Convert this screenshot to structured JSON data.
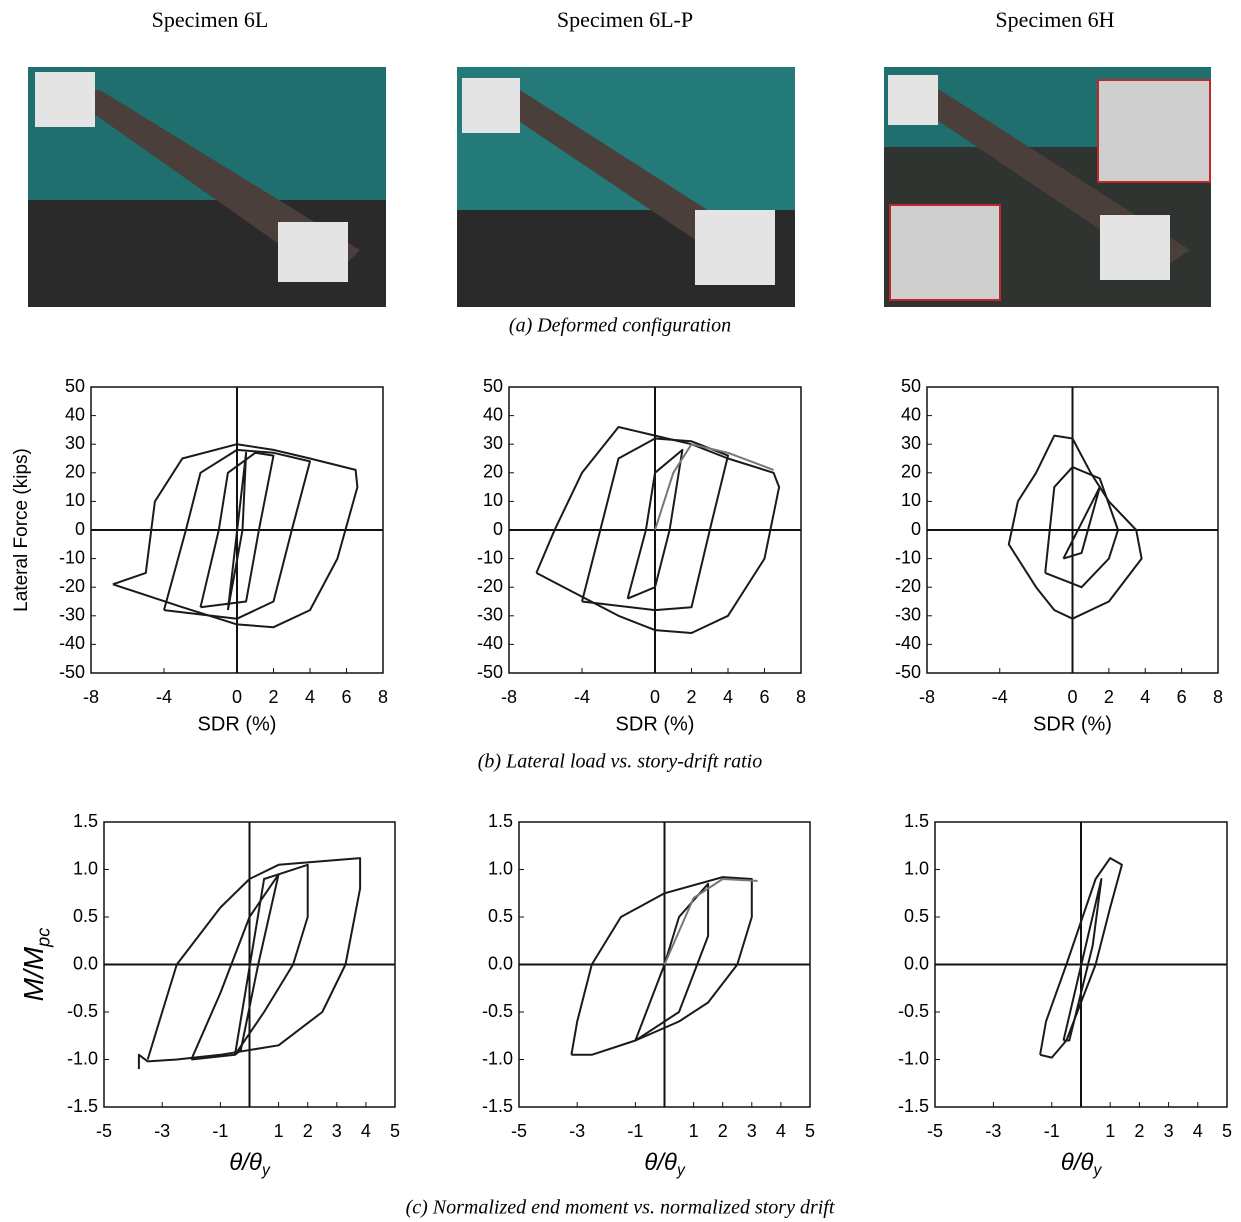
{
  "specimens": [
    "Specimen 6L",
    "Specimen 6L-P",
    "Specimen 6H"
  ],
  "captions": [
    "(a)  Deformed configuration",
    "(b)  Lateral load vs. story-drift ratio",
    "(c)  Normalized end moment vs. normalized story drift"
  ],
  "chart_data": [
    {
      "type": "line",
      "ylabel": "Lateral Force (kips)",
      "xlabel": "SDR (%)",
      "xlim": [
        -8,
        8
      ],
      "ylim": [
        -50,
        50
      ],
      "xticks": [
        -8,
        -4,
        0,
        2,
        4,
        6,
        8
      ],
      "yticks": [
        -50,
        -40,
        -30,
        -20,
        -10,
        0,
        10,
        20,
        30,
        40,
        50
      ],
      "zero_lines": true,
      "series": [
        {
          "color": "#1a1a1a",
          "x": [
            -6.8,
            -5,
            -4.5,
            -3,
            0,
            2,
            4,
            6.5,
            6.6,
            5.5,
            4,
            2,
            0,
            -3,
            -6.8
          ],
          "values": [
            -19,
            -15,
            10,
            25,
            30,
            28,
            25,
            21,
            15,
            -10,
            -28,
            -34,
            -33,
            -27,
            -19
          ]
        },
        {
          "color": "#1a1a1a",
          "x": [
            -4,
            -2.8,
            -2,
            0,
            2,
            4,
            3,
            2,
            0,
            -4
          ],
          "values": [
            -28,
            0,
            20,
            28,
            27,
            24,
            0,
            -25,
            -31,
            -28
          ]
        },
        {
          "color": "#1a1a1a",
          "x": [
            -2,
            -1,
            -0.5,
            1,
            2,
            1.2,
            0.5,
            -2
          ],
          "values": [
            -27,
            0,
            20,
            27,
            26,
            0,
            -25,
            -27
          ]
        },
        {
          "color": "#1a1a1a",
          "x": [
            -0.5,
            0.5,
            0.3,
            -0.5
          ],
          "values": [
            -28,
            27,
            0,
            -28
          ]
        }
      ]
    },
    {
      "type": "line",
      "xlabel": "SDR (%)",
      "xlim": [
        -8,
        8
      ],
      "ylim": [
        -50,
        50
      ],
      "xticks": [
        -8,
        -4,
        0,
        2,
        4,
        6,
        8
      ],
      "yticks": [
        -50,
        -40,
        -30,
        -20,
        -10,
        0,
        10,
        20,
        30,
        40,
        50
      ],
      "zero_lines": true,
      "series": [
        {
          "color": "#1a1a1a",
          "x": [
            -6.5,
            -5.5,
            -4,
            -2,
            0,
            2,
            4,
            6.5,
            6.8,
            6,
            4,
            2,
            0,
            -2,
            -5,
            -6.5
          ],
          "values": [
            -15,
            0,
            20,
            36,
            33,
            30,
            25,
            20,
            15,
            -10,
            -30,
            -36,
            -35,
            -30,
            -20,
            -15
          ]
        },
        {
          "color": "#1a1a1a",
          "x": [
            -4,
            -3,
            -2,
            0,
            2,
            4,
            3,
            2,
            0,
            -4
          ],
          "values": [
            -25,
            0,
            25,
            32,
            31,
            26,
            0,
            -27,
            -28,
            -25
          ]
        },
        {
          "color": "#1a1a1a",
          "x": [
            -1.5,
            -0.5,
            0,
            1.5,
            0.8,
            0,
            -1.5
          ],
          "values": [
            -24,
            0,
            20,
            28,
            0,
            -20,
            -24
          ]
        },
        {
          "color": "#777777",
          "x": [
            0,
            1,
            2,
            4,
            6.5
          ],
          "values": [
            0,
            20,
            30,
            27,
            21
          ]
        }
      ]
    },
    {
      "type": "line",
      "xlabel": "SDR (%)",
      "xlim": [
        -8,
        8
      ],
      "ylim": [
        -50,
        50
      ],
      "xticks": [
        -8,
        -4,
        0,
        2,
        4,
        6,
        8
      ],
      "yticks": [
        -50,
        -40,
        -30,
        -20,
        -10,
        0,
        10,
        20,
        30,
        40,
        50
      ],
      "zero_lines": true,
      "series": [
        {
          "color": "#1a1a1a",
          "x": [
            -3,
            -2,
            -1,
            0,
            1,
            2,
            3.5,
            3.8,
            2,
            0,
            -1,
            -2,
            -3.5,
            -3
          ],
          "values": [
            10,
            20,
            33,
            32,
            20,
            10,
            0,
            -10,
            -25,
            -31,
            -28,
            -20,
            -5,
            10
          ]
        },
        {
          "color": "#1a1a1a",
          "x": [
            -1.5,
            -1,
            0,
            1.5,
            2.5,
            2,
            0.5,
            -1.5
          ],
          "values": [
            -15,
            15,
            22,
            18,
            0,
            -10,
            -20,
            -15
          ]
        },
        {
          "color": "#1a1a1a",
          "x": [
            -0.5,
            1.5,
            0.5,
            -0.5
          ],
          "values": [
            -10,
            15,
            -8,
            -10
          ]
        }
      ]
    },
    {
      "type": "line",
      "ylabel": {
        "text": "M/M",
        "sub": "pc"
      },
      "xlabel": {
        "text": "θ/θ",
        "sub": "y"
      },
      "xlim": [
        -5,
        5
      ],
      "ylim": [
        -1.5,
        1.5
      ],
      "xticks": [
        -5,
        -3,
        -1,
        1,
        2,
        3,
        4,
        5
      ],
      "yticks": [
        -1.5,
        {
          "value": -1,
          "label": "-1.0"
        },
        -0.5,
        {
          "value": 0,
          "label": "0.0"
        },
        0.5,
        {
          "value": 1,
          "label": "1.0"
        },
        1.5
      ],
      "zero_lines": true,
      "series": [
        {
          "color": "#1a1a1a",
          "x": [
            -3.8,
            -3.8,
            -3.5,
            -2.5,
            -1,
            1,
            2.5,
            3.3,
            3.8,
            3.8,
            3,
            1,
            0,
            -1,
            -2.5,
            -3,
            -3.5
          ],
          "values": [
            -1.1,
            -0.95,
            -1.02,
            -1,
            -0.95,
            -0.85,
            -0.5,
            0,
            0.8,
            1.12,
            1.1,
            1.05,
            0.9,
            0.6,
            0,
            -0.5,
            -1
          ]
        },
        {
          "color": "#1a1a1a",
          "x": [
            -2,
            -1,
            0,
            1,
            2,
            2,
            1.5,
            0.5,
            -0.5,
            -2
          ],
          "values": [
            -1,
            -0.3,
            0.5,
            0.95,
            1.05,
            0.5,
            0,
            -0.5,
            -0.95,
            -1
          ]
        },
        {
          "color": "#1a1a1a",
          "x": [
            -0.5,
            0.5,
            1,
            0.3,
            -0.3,
            -0.5
          ],
          "values": [
            -0.95,
            0.9,
            0.95,
            0,
            -0.9,
            -0.95
          ]
        }
      ]
    },
    {
      "type": "line",
      "xlabel": {
        "text": "θ/θ",
        "sub": "y"
      },
      "xlim": [
        -5,
        5
      ],
      "ylim": [
        -1.5,
        1.5
      ],
      "xticks": [
        -5,
        -3,
        -1,
        1,
        2,
        3,
        4,
        5
      ],
      "yticks": [
        -1.5,
        {
          "value": -1,
          "label": "-1.0"
        },
        -0.5,
        {
          "value": 0,
          "label": "0.0"
        },
        0.5,
        {
          "value": 1,
          "label": "1.0"
        },
        1.5
      ],
      "zero_lines": true,
      "series": [
        {
          "color": "#1a1a1a",
          "x": [
            -3.2,
            -2.5,
            -1,
            0.5,
            1.5,
            2.5,
            3,
            3,
            2,
            0,
            -1.5,
            -2.5,
            -3,
            -3.2
          ],
          "values": [
            -0.95,
            -0.95,
            -0.8,
            -0.6,
            -0.4,
            0,
            0.5,
            0.9,
            0.92,
            0.75,
            0.5,
            0,
            -0.6,
            -0.95
          ]
        },
        {
          "color": "#1a1a1a",
          "x": [
            -1,
            0,
            0.5,
            1.5,
            1.5,
            0.5,
            -1
          ],
          "values": [
            -0.8,
            0,
            0.5,
            0.85,
            0.3,
            -0.5,
            -0.8
          ]
        },
        {
          "color": "#777777",
          "x": [
            0,
            1,
            2,
            3.2
          ],
          "values": [
            0,
            0.7,
            0.9,
            0.88
          ]
        }
      ]
    },
    {
      "type": "line",
      "xlabel": {
        "text": "θ/θ",
        "sub": "y"
      },
      "xlim": [
        -5,
        5
      ],
      "ylim": [
        -1.5,
        1.5
      ],
      "xticks": [
        -5,
        -3,
        -1,
        1,
        2,
        3,
        4,
        5
      ],
      "yticks": [
        -1.5,
        {
          "value": -1,
          "label": "-1.0"
        },
        -0.5,
        {
          "value": 0,
          "label": "0.0"
        },
        0.5,
        {
          "value": 1,
          "label": "1.0"
        },
        1.5
      ],
      "zero_lines": true,
      "series": [
        {
          "color": "#1a1a1a",
          "x": [
            -1.4,
            -1,
            -0.5,
            0.5,
            1,
            1.4,
            1,
            0.5,
            -0.5,
            -1.2,
            -1.4
          ],
          "values": [
            -0.95,
            -0.98,
            -0.8,
            0,
            0.6,
            1.05,
            1.12,
            0.9,
            0,
            -0.6,
            -0.95
          ]
        },
        {
          "color": "#1a1a1a",
          "x": [
            -0.6,
            0.7,
            0.4,
            -0.4,
            -0.6
          ],
          "values": [
            -0.8,
            0.9,
            0.2,
            -0.8,
            -0.8
          ]
        }
      ]
    }
  ]
}
